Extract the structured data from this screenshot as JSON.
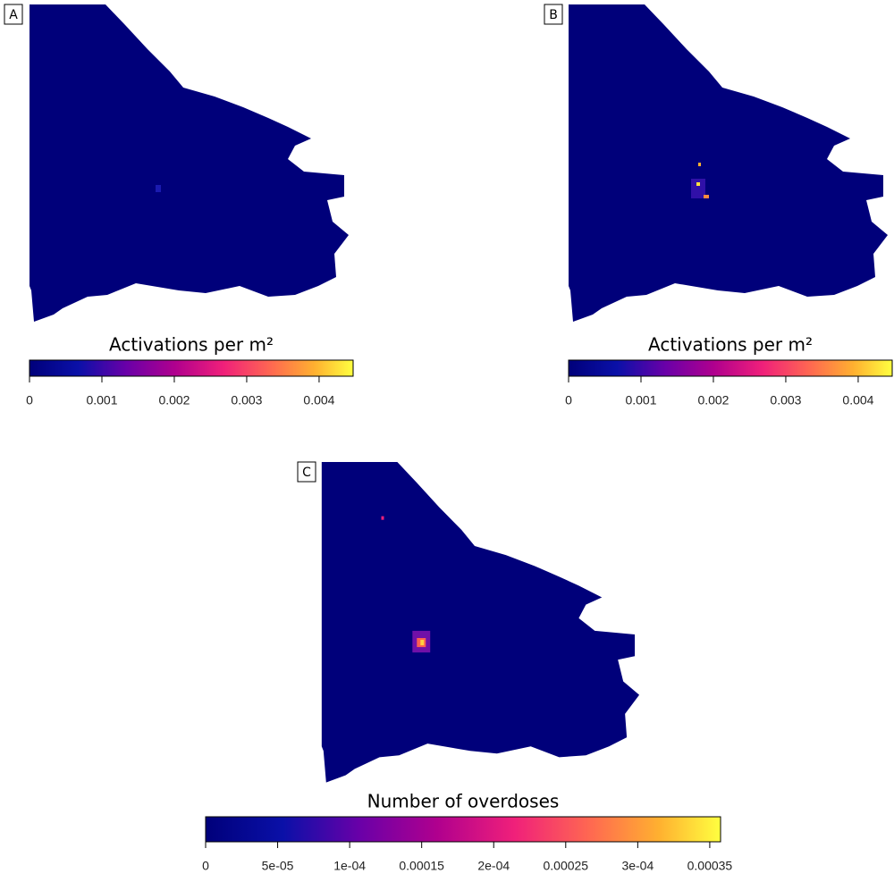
{
  "panels": [
    {
      "label": "A",
      "colorbar": {
        "title": "Activations per m²",
        "lim": [
          0,
          0.00447
        ],
        "ticks": [
          0,
          0.001,
          0.002,
          0.003,
          0.004
        ]
      }
    },
    {
      "label": "B",
      "colorbar": {
        "title": "Activations per m²",
        "lim": [
          0,
          0.00447
        ],
        "ticks": [
          0,
          0.001,
          0.002,
          0.003,
          0.004
        ]
      }
    },
    {
      "label": "C",
      "colorbar": {
        "title": "Number of overdoses",
        "lim": [
          0,
          0.0003575
        ],
        "ticks": [
          0,
          {
            "value": 5e-05,
            "label": "5e-05"
          },
          {
            "value": 0.0001,
            "label": "1e-04"
          },
          0.00015,
          {
            "value": 0.0002,
            "label": "2e-04"
          },
          0.00025,
          {
            "value": 0.0003,
            "label": "3e-04"
          },
          0.00035
        ]
      }
    }
  ]
}
